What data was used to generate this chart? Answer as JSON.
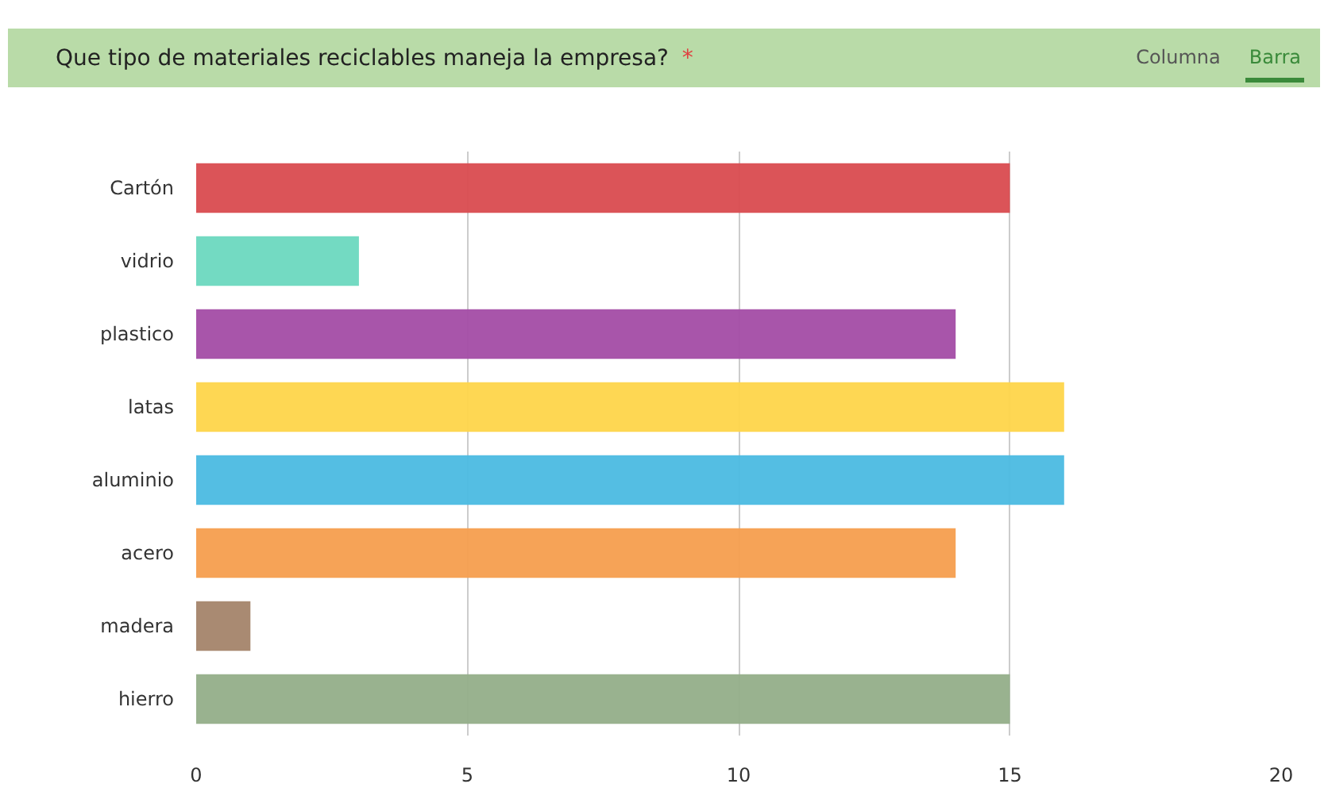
{
  "chart_data": {
    "type": "bar",
    "orientation": "horizontal",
    "title": "Que tipo de materiales reciclables maneja la empresa?",
    "annotations": [
      "*",
      "Columna",
      "Barra"
    ],
    "categories": [
      "Cartón",
      "vidrio",
      "plastico",
      "latas",
      "aluminio",
      "acero",
      "madera",
      "hierro"
    ],
    "values": [
      15,
      3,
      14,
      16,
      16,
      14,
      1,
      15
    ],
    "colors": [
      "#d94b4f",
      "#6bd8bf",
      "#a34ca5",
      "#fed54a",
      "#4bbae2",
      "#f59e4e",
      "#a4846a",
      "#93ae89"
    ],
    "xlim": [
      0,
      20
    ],
    "xticks": [
      0,
      5,
      10,
      15,
      20
    ],
    "grid": "x"
  }
}
